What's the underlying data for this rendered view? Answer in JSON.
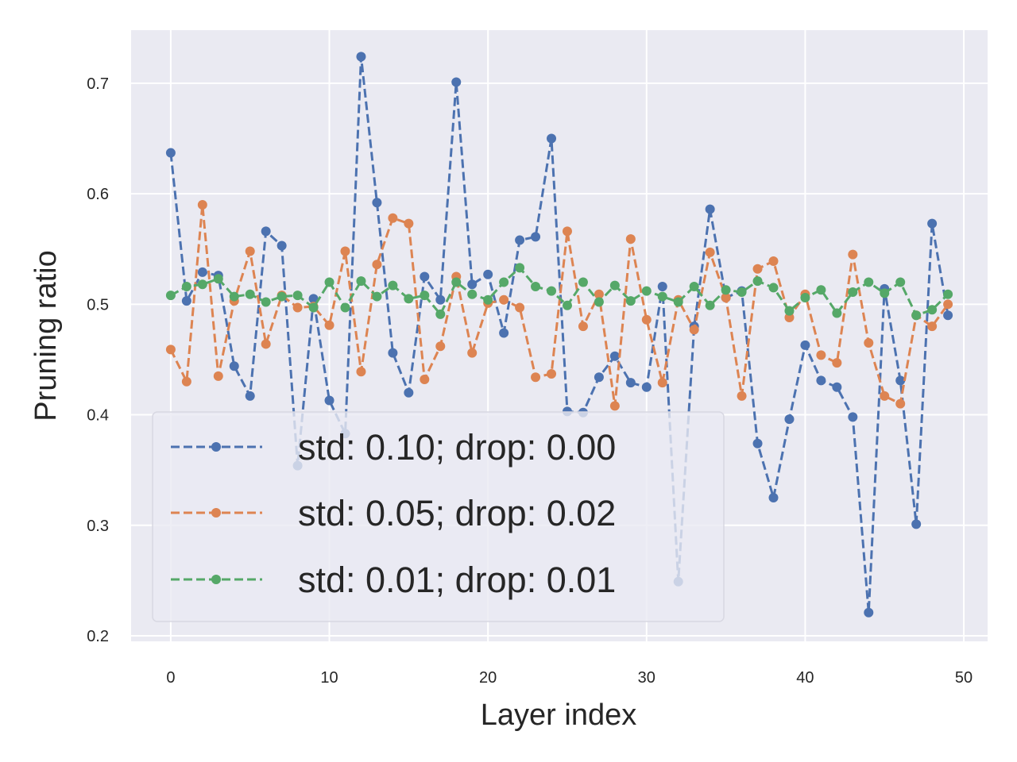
{
  "chart_data": {
    "type": "line",
    "title": "",
    "xlabel": "Layer index",
    "ylabel": "Pruning ratio",
    "xlim": [
      -2.5,
      51.5
    ],
    "ylim": [
      0.195,
      0.748
    ],
    "xticks": [
      0,
      10,
      20,
      30,
      40,
      50
    ],
    "yticks": [
      0.2,
      0.3,
      0.4,
      0.5,
      0.6,
      0.7
    ],
    "xtick_labels": [
      "0",
      "10",
      "20",
      "30",
      "40",
      "50"
    ],
    "ytick_labels": [
      "0.2",
      "0.3",
      "0.4",
      "0.5",
      "0.6",
      "0.7"
    ],
    "grid": true,
    "legend_position": "lower-left",
    "colors": {
      "background": "#eaeaf2",
      "grid": "#ffffff",
      "text": "#262626"
    },
    "x": [
      0,
      1,
      2,
      3,
      4,
      5,
      6,
      7,
      8,
      9,
      10,
      11,
      12,
      13,
      14,
      15,
      16,
      17,
      18,
      19,
      20,
      21,
      22,
      23,
      24,
      25,
      26,
      27,
      28,
      29,
      30,
      31,
      32,
      33,
      34,
      35,
      36,
      37,
      38,
      39,
      40,
      41,
      42,
      43,
      44,
      45,
      46,
      47,
      48,
      49
    ],
    "series": [
      {
        "name": "std: 0.10; drop: 0.00",
        "color": "#4c72b0",
        "values": [
          0.637,
          0.503,
          0.529,
          0.526,
          0.444,
          0.417,
          0.566,
          0.553,
          0.354,
          0.505,
          0.413,
          0.383,
          0.724,
          0.592,
          0.456,
          0.42,
          0.525,
          0.504,
          0.701,
          0.518,
          0.527,
          0.474,
          0.558,
          0.561,
          0.65,
          0.403,
          0.402,
          0.434,
          0.453,
          0.429,
          0.425,
          0.516,
          0.249,
          0.48,
          0.586,
          0.506,
          0.512,
          0.374,
          0.325,
          0.396,
          0.463,
          0.431,
          0.425,
          0.398,
          0.221,
          0.514,
          0.431,
          0.301,
          0.573,
          0.49
        ]
      },
      {
        "name": "std: 0.05; drop: 0.02",
        "color": "#dd8452",
        "values": [
          0.459,
          0.43,
          0.59,
          0.435,
          0.503,
          0.548,
          0.464,
          0.508,
          0.497,
          0.498,
          0.481,
          0.548,
          0.439,
          0.536,
          0.578,
          0.573,
          0.432,
          0.462,
          0.525,
          0.456,
          0.501,
          0.504,
          0.497,
          0.434,
          0.437,
          0.566,
          0.48,
          0.509,
          0.408,
          0.559,
          0.486,
          0.429,
          0.504,
          0.477,
          0.547,
          0.506,
          0.417,
          0.532,
          0.539,
          0.488,
          0.509,
          0.454,
          0.447,
          0.545,
          0.465,
          0.417,
          0.41,
          0.49,
          0.48,
          0.5
        ]
      },
      {
        "name": "std: 0.01; drop: 0.01",
        "color": "#55a868",
        "values": [
          0.508,
          0.516,
          0.518,
          0.523,
          0.507,
          0.509,
          0.502,
          0.507,
          0.508,
          0.497,
          0.52,
          0.497,
          0.521,
          0.507,
          0.517,
          0.505,
          0.508,
          0.491,
          0.52,
          0.509,
          0.504,
          0.52,
          0.533,
          0.516,
          0.512,
          0.499,
          0.52,
          0.502,
          0.517,
          0.503,
          0.512,
          0.507,
          0.502,
          0.516,
          0.499,
          0.513,
          0.511,
          0.521,
          0.515,
          0.494,
          0.506,
          0.513,
          0.492,
          0.511,
          0.52,
          0.51,
          0.52,
          0.49,
          0.495,
          0.509
        ]
      }
    ]
  }
}
